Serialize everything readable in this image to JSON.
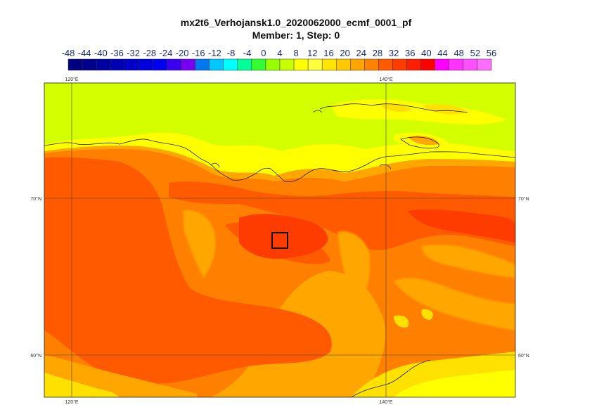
{
  "title_line1": "mx2t6_Verhojansk1.0_2020062000_ecmf_0001_pf",
  "title_line2": "Member: 1, Step: 0",
  "colorbar": {
    "labels": [
      "-48",
      "-44",
      "-40",
      "-36",
      "-32",
      "-28",
      "-24",
      "-20",
      "-16",
      "-12",
      "-8",
      "-4",
      "0",
      "4",
      "8",
      "12",
      "16",
      "20",
      "24",
      "28",
      "32",
      "36",
      "40",
      "44",
      "48",
      "52",
      "56"
    ],
    "colors": [
      "#000080",
      "#00008c",
      "#0000a0",
      "#0000b4",
      "#0000c8",
      "#0000dc",
      "#0000f0",
      "#3c00f0",
      "#7800f0",
      "#0078f0",
      "#00c8ff",
      "#00ffff",
      "#00ff96",
      "#32ff32",
      "#96ff00",
      "#c8ff00",
      "#ffff00",
      "#ffff3c",
      "#ffe600",
      "#ffc800",
      "#ffa500",
      "#ff8200",
      "#ff5a00",
      "#ff3c00",
      "#ff1e00",
      "#ff0000",
      "#ff00ff",
      "#ff32ff",
      "#ff50ff",
      "#ff6eff"
    ]
  },
  "map": {
    "lon_labels": [
      "120°E",
      "140°E"
    ],
    "lat_labels": [
      "70°N",
      "60°N"
    ],
    "field_colors": {
      "low": "#d4ff00",
      "yellow": "#ffff00",
      "mid": "#ffe100",
      "orange": "#ffa600",
      "darkorange": "#ff7f00",
      "red": "#ff5a00",
      "deepred": "#ff3c00"
    },
    "marker": "selected-point-box"
  }
}
